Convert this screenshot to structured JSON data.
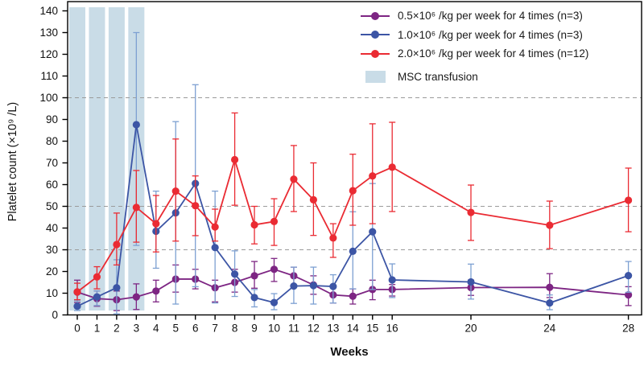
{
  "legend": {
    "items": [
      {
        "label": "0.5×10⁶ /kg per week for 4 times (n=3)",
        "color": "#7d2583",
        "type": "line"
      },
      {
        "label": "1.0×10⁶ /kg per week for 4 times (n=3)",
        "color": "#3c55a5",
        "type": "line"
      },
      {
        "label": "2.0×10⁶ /kg per week for 4 times (n=12)",
        "color": "#ea2b33",
        "type": "line"
      },
      {
        "label": "MSC transfusion",
        "color": "#c9dce7",
        "type": "patch"
      }
    ]
  },
  "chart_data": {
    "type": "line",
    "title": "",
    "xlabel": "Weeks",
    "ylabel": "Platelet count (×10⁹ /L)",
    "ylim": [
      0,
      140
    ],
    "yticks": [
      0,
      10,
      20,
      30,
      40,
      50,
      60,
      70,
      80,
      90,
      100,
      110,
      120,
      130,
      140
    ],
    "xticks": [
      0,
      1,
      2,
      3,
      4,
      5,
      6,
      7,
      8,
      9,
      10,
      11,
      12,
      13,
      14,
      15,
      16,
      20,
      24,
      28
    ],
    "gridlines_y": [
      30,
      50,
      100
    ],
    "grid_style": "dashed",
    "grid_color": "#9b9b9b",
    "legend_position": "upper-right-inside",
    "x": [
      0,
      1,
      2,
      3,
      4,
      5,
      6,
      7,
      8,
      9,
      10,
      11,
      12,
      13,
      14,
      15,
      16,
      20,
      24,
      28
    ],
    "msc_bands": {
      "label": "MSC transfusion",
      "weeks": [
        0,
        1,
        2,
        3
      ],
      "color": "#c9dce7"
    },
    "series": [
      {
        "name": "0.5×10⁶ /kg per week for 4 times (n=3)",
        "color": "#7d2583",
        "error_color": "#7d2583",
        "values": [
          10.5,
          7.5,
          7,
          8.3,
          11,
          16.5,
          16.5,
          12.5,
          15,
          18,
          21,
          18,
          13.8,
          9.2,
          8.6,
          11.7,
          11.7,
          12.6,
          12.7,
          9.2
        ],
        "err_low": [
          5.7,
          4,
          2,
          2.5,
          6,
          10.5,
          12,
          6,
          10.5,
          12.3,
          15.4,
          13,
          9.5,
          5.5,
          5,
          7,
          8.7,
          9,
          8,
          4.3
        ],
        "err_high": [
          16,
          11,
          11,
          14.3,
          16,
          23,
          21,
          16,
          21,
          24.6,
          26,
          22,
          18,
          13,
          12,
          16,
          14,
          16,
          19,
          13
        ]
      },
      {
        "name": "1.0×10⁶ /kg per week for 4 times (n=3)",
        "color": "#3c55a5",
        "error_color": "#7da0d2",
        "values": [
          4,
          8.3,
          12.5,
          87.6,
          38.5,
          47,
          60.5,
          31,
          18.8,
          8,
          5.7,
          13.3,
          13.5,
          13.1,
          29.3,
          38.3,
          16.1,
          15.2,
          5.5,
          18.1
        ],
        "err_low": [
          2,
          4.3,
          0.5,
          32,
          21.5,
          5,
          13,
          5.5,
          8.5,
          3.7,
          2.4,
          5.3,
          5,
          5.5,
          12,
          11.7,
          8,
          7.3,
          2.4,
          10.4
        ],
        "err_high": [
          6.5,
          11,
          25.4,
          130,
          57,
          89,
          106,
          57,
          29.5,
          11.7,
          9.8,
          22,
          22,
          18.5,
          47.5,
          60.5,
          23.5,
          23.4,
          9.2,
          24.6
        ]
      },
      {
        "name": "2.0×10⁶ /kg per week for 4 times (n=12)",
        "color": "#ea2b33",
        "error_color": "#ea2b33",
        "values": [
          10.6,
          17.5,
          32.4,
          49.5,
          42,
          57,
          50.3,
          40.5,
          71.5,
          41.5,
          43,
          62.5,
          53,
          35.4,
          57.2,
          64,
          68,
          47.2,
          41.3,
          52.8
        ],
        "err_low": [
          7,
          12,
          23,
          33.5,
          29,
          34,
          36.5,
          34,
          50.5,
          32.7,
          32,
          47.6,
          36.6,
          26.5,
          41.3,
          42,
          47.6,
          34.3,
          30.5,
          38.3
        ],
        "err_high": [
          14.6,
          22.2,
          46.9,
          66.5,
          55,
          81,
          64,
          48.7,
          93,
          50,
          53.5,
          78,
          70,
          42,
          74,
          88,
          88.7,
          59.8,
          52.4,
          67.6
        ]
      }
    ]
  }
}
